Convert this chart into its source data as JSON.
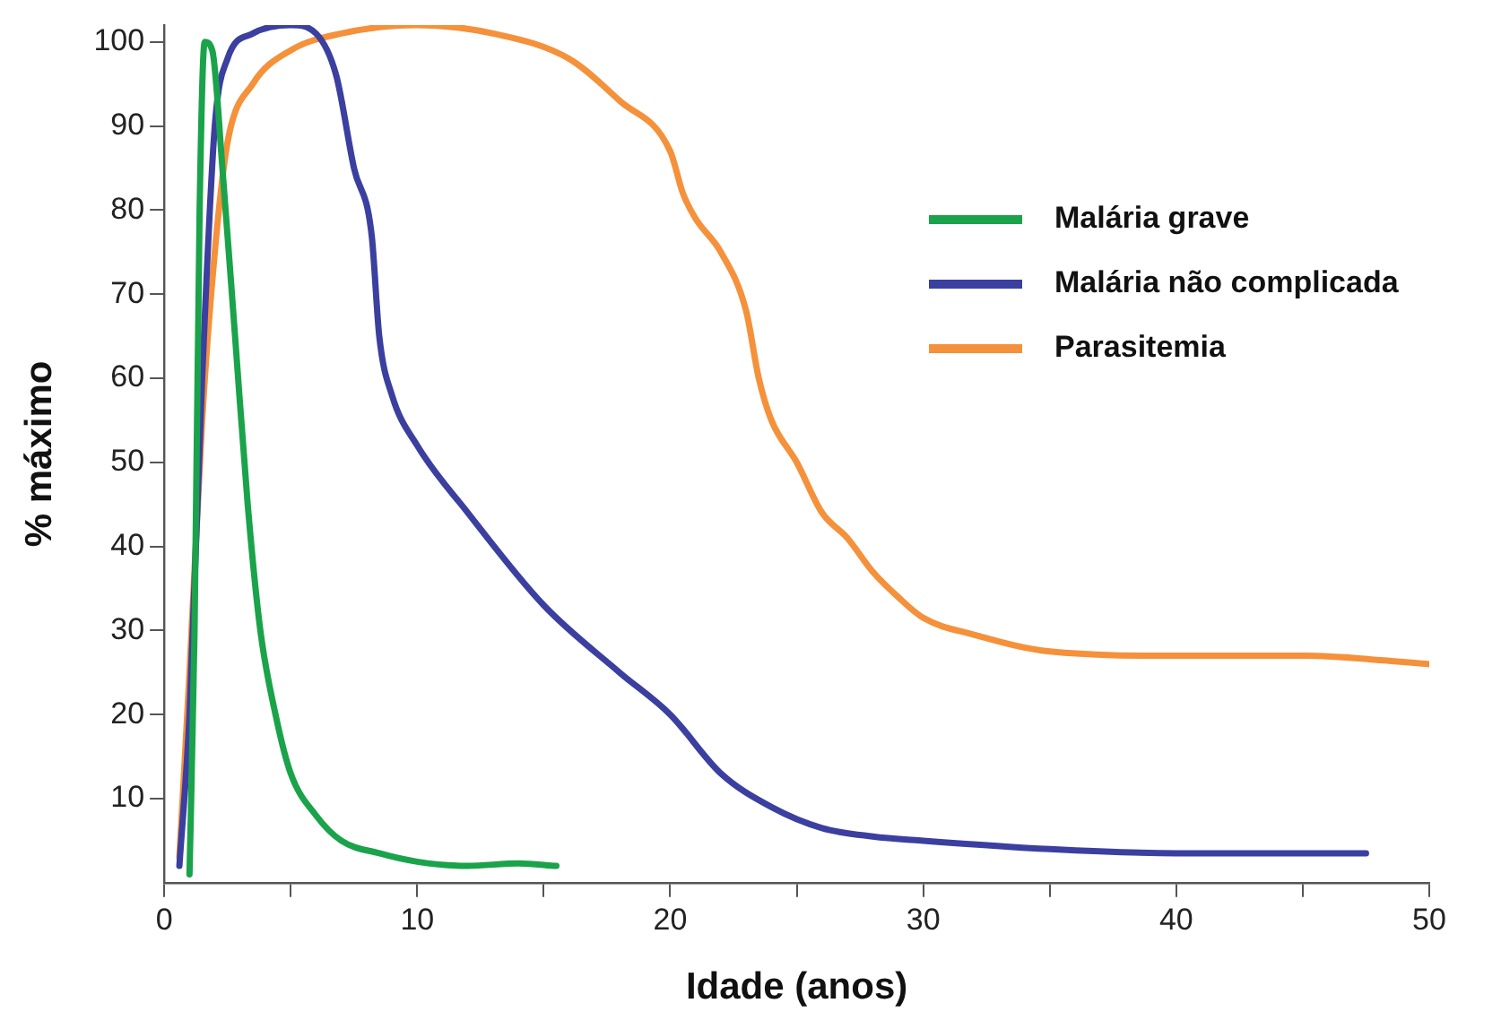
{
  "chart_data": {
    "type": "line",
    "xlabel": "Idade (anos)",
    "ylabel": "% máximo",
    "xlim": [
      0,
      50
    ],
    "xticks": [
      0,
      {
        "value": 5,
        "label": null
      },
      10,
      {
        "value": 15,
        "label": null
      },
      20,
      {
        "value": 25,
        "label": null
      },
      30,
      {
        "value": 35,
        "label": null
      },
      40,
      {
        "value": 45,
        "label": null
      },
      50
    ],
    "ylim": [
      0,
      102
    ],
    "yticks": [
      10,
      20,
      30,
      40,
      50,
      60,
      70,
      80,
      90,
      100
    ],
    "grid": false,
    "legend": "right",
    "marker": "none",
    "line_style": "solid",
    "series": [
      {
        "name": "Malária grave",
        "color": "#1aa34a",
        "x": [
          1.0,
          1.2,
          1.4,
          1.6,
          1.9,
          2.3,
          2.8,
          3.3,
          3.8,
          4.4,
          5.0,
          6.0,
          7.0,
          8.5,
          10,
          12,
          14,
          15.5
        ],
        "values": [
          1,
          30,
          80,
          100,
          99,
          85,
          65,
          45,
          30,
          20,
          13,
          8,
          5,
          3.5,
          2.5,
          2,
          2.3,
          2
        ]
      },
      {
        "name": "Malária não complicada",
        "color": "#3b3fa0",
        "x": [
          0.6,
          1.0,
          1.5,
          2.0,
          2.5,
          3.5,
          5,
          6,
          6.8,
          7.5,
          8.2,
          8.5,
          9,
          10,
          12,
          15,
          18,
          20,
          22,
          24,
          26,
          28,
          30,
          35,
          40,
          47.5
        ],
        "values": [
          2,
          20,
          60,
          90,
          98,
          101,
          102,
          101,
          96,
          85,
          77,
          65,
          58,
          52,
          44,
          33,
          25,
          20,
          13,
          9,
          6.5,
          5.5,
          5,
          4,
          3.5,
          3.5
        ]
      },
      {
        "name": "Parasitemia",
        "color": "#f5913a",
        "x": [
          0.6,
          1.0,
          1.5,
          2,
          2.5,
          3.5,
          5,
          7,
          10,
          13,
          16,
          18,
          20,
          20.5,
          21,
          22,
          23,
          23.5,
          24,
          25,
          26,
          27,
          28,
          29,
          30,
          32,
          35,
          40,
          45,
          50
        ],
        "values": [
          3,
          25,
          55,
          75,
          88,
          95,
          99,
          101,
          102,
          101,
          98,
          93,
          87,
          82,
          79,
          75,
          68,
          60,
          55,
          50,
          44,
          41,
          37,
          34,
          31.5,
          29.5,
          27.5,
          27,
          27,
          26
        ]
      }
    ]
  }
}
